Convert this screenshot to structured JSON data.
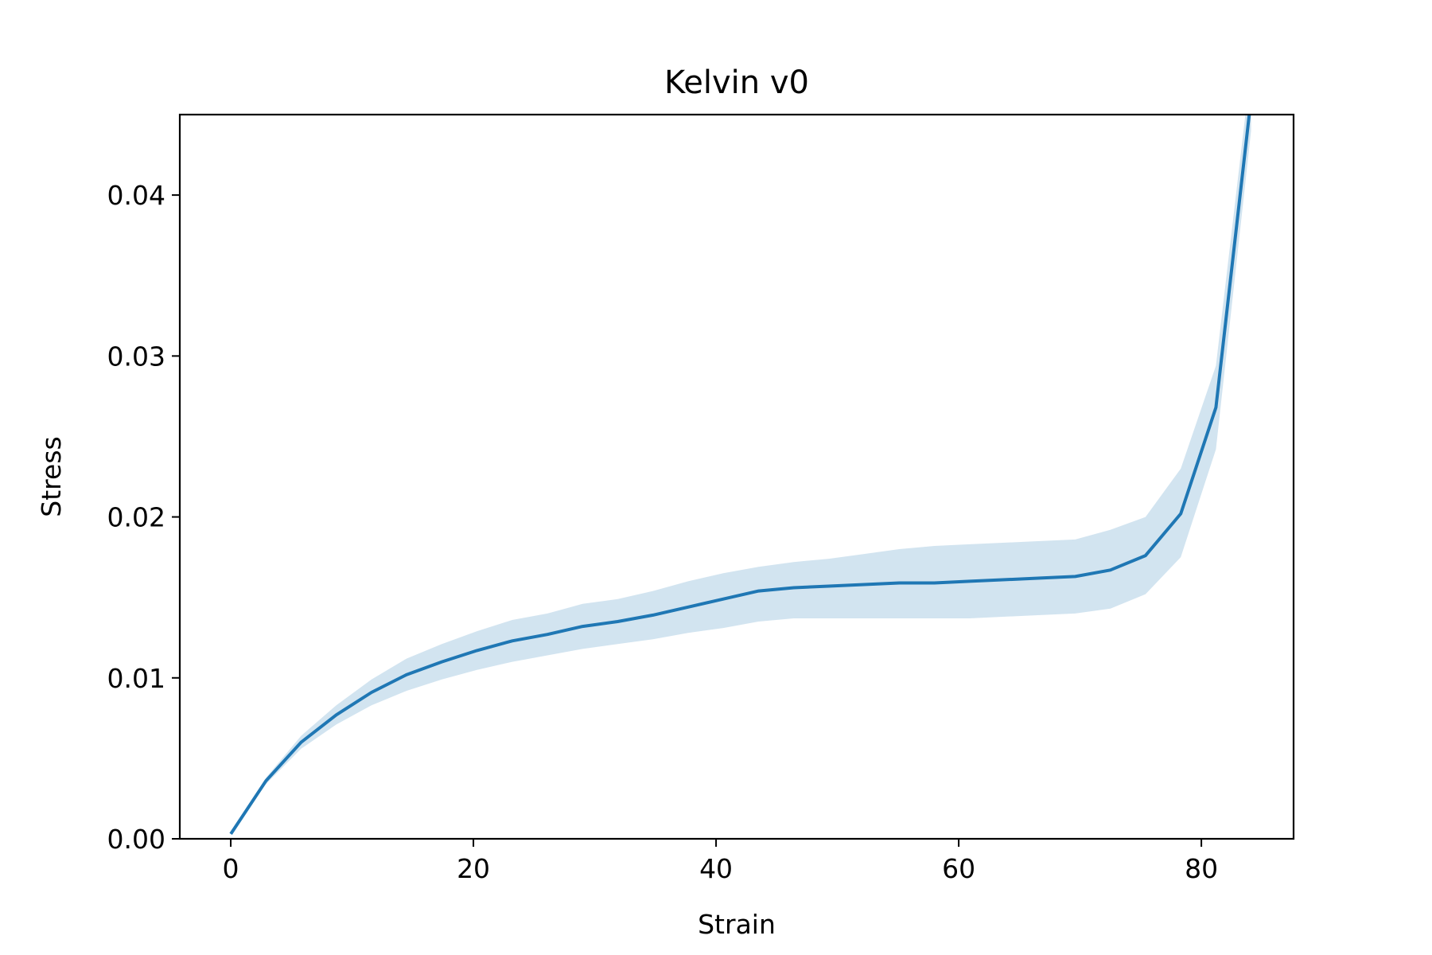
{
  "chart_data": {
    "type": "line",
    "title": "Kelvin v0",
    "xlabel": "Strain",
    "ylabel": "Stress",
    "xlim": [
      -4.2,
      87.6
    ],
    "ylim": [
      0,
      0.045
    ],
    "xticks": [
      0,
      20,
      40,
      60,
      80
    ],
    "xtick_labels": [
      "0",
      "20",
      "40",
      "60",
      "80"
    ],
    "yticks": [
      0,
      0.01,
      0.02,
      0.03,
      0.04
    ],
    "ytick_labels": [
      "0.00",
      "0.01",
      "0.02",
      "0.03",
      "0.04"
    ],
    "grid": false,
    "legend": "none",
    "colors": {
      "line": "#1f77b4",
      "band": "#1f77b4",
      "band_opacity": 0.2
    },
    "series": [
      {
        "x": [
          0,
          2.9,
          5.8,
          8.7,
          11.6,
          14.5,
          17.4,
          20.3,
          23.2,
          26.1,
          29,
          31.9,
          34.8,
          37.7,
          40.6,
          43.5,
          46.4,
          49.3,
          52.2,
          55.1,
          58,
          60.9,
          63.8,
          66.7,
          69.6,
          72.5,
          75.4,
          78.3,
          81.2,
          84.1
        ],
        "y": [
          0.0003,
          0.0036,
          0.006,
          0.0077,
          0.0091,
          0.0102,
          0.011,
          0.0117,
          0.0123,
          0.0127,
          0.0132,
          0.0135,
          0.0139,
          0.0144,
          0.0149,
          0.0154,
          0.0156,
          0.0157,
          0.0158,
          0.0159,
          0.0159,
          0.016,
          0.0161,
          0.0162,
          0.0163,
          0.0167,
          0.0176,
          0.0202,
          0.0268,
          0.046
        ]
      }
    ],
    "band": {
      "x": [
        0,
        2.9,
        5.8,
        8.7,
        11.6,
        14.5,
        17.4,
        20.3,
        23.2,
        26.1,
        29,
        31.9,
        34.8,
        37.7,
        40.6,
        43.5,
        46.4,
        49.3,
        52.2,
        55.1,
        58,
        60.9,
        63.8,
        66.7,
        69.6,
        72.5,
        75.4,
        78.3,
        81.2,
        84.1
      ],
      "lower": [
        0.0003,
        0.0034,
        0.0056,
        0.0071,
        0.0083,
        0.0092,
        0.0099,
        0.0105,
        0.011,
        0.0114,
        0.0118,
        0.0121,
        0.0124,
        0.0128,
        0.0131,
        0.0135,
        0.0137,
        0.0137,
        0.0137,
        0.0137,
        0.0137,
        0.0137,
        0.0138,
        0.0139,
        0.014,
        0.0143,
        0.0152,
        0.0175,
        0.0242,
        0.044
      ],
      "upper": [
        0.0003,
        0.0038,
        0.0064,
        0.0083,
        0.0099,
        0.0112,
        0.0121,
        0.0129,
        0.0136,
        0.014,
        0.0146,
        0.0149,
        0.0154,
        0.016,
        0.0165,
        0.0169,
        0.0172,
        0.0174,
        0.0177,
        0.018,
        0.0182,
        0.0183,
        0.0184,
        0.0185,
        0.0186,
        0.0192,
        0.02,
        0.023,
        0.0294,
        0.048
      ]
    }
  }
}
